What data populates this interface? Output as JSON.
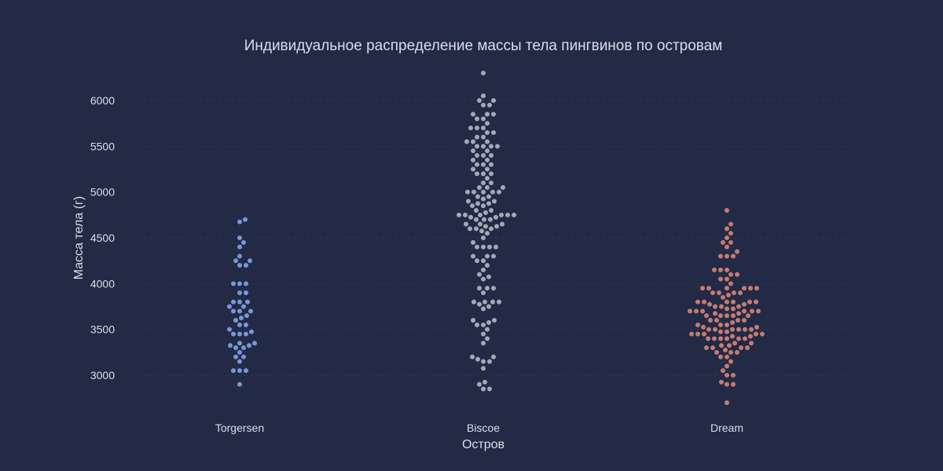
{
  "chart_data": {
    "type": "scatter",
    "subtype": "swarm",
    "title": "Индивидуальное распределение массы тела пингвинов по островам",
    "xlabel": "Остров",
    "ylabel": "Масса тела (г)",
    "categories": [
      "Torgersen",
      "Biscoe",
      "Dream"
    ],
    "ylim": [
      2500,
      6350
    ],
    "yticks": [
      3000,
      3500,
      4000,
      4500,
      5000,
      5500,
      6000
    ],
    "grid": true,
    "legend": "none",
    "colors": {
      "background": "#222a46",
      "grid": "#2e3656",
      "text": "#dcdde4",
      "Torgersen": "#7b96d6",
      "Biscoe": "#a6a8b4",
      "Dream": "#c47c72"
    },
    "series": [
      {
        "category": "Torgersen",
        "values": [
          2900,
          3050,
          3050,
          3050,
          3150,
          3200,
          3200,
          3250,
          3300,
          3300,
          3325,
          3325,
          3350,
          3350,
          3450,
          3450,
          3450,
          3475,
          3500,
          3550,
          3550,
          3600,
          3625,
          3650,
          3700,
          3700,
          3700,
          3750,
          3750,
          3800,
          3800,
          3800,
          3900,
          3900,
          4000,
          4000,
          4000,
          4200,
          4200,
          4250,
          4250,
          4300,
          4400,
          4450,
          4500,
          4675,
          4700
        ]
      },
      {
        "category": "Biscoe",
        "values": [
          2850,
          2850,
          2900,
          2925,
          3075,
          3150,
          3150,
          3175,
          3200,
          3200,
          3350,
          3400,
          3450,
          3500,
          3550,
          3550,
          3575,
          3600,
          3600,
          3725,
          3750,
          3775,
          3800,
          3800,
          3800,
          3800,
          3900,
          3950,
          3950,
          3950,
          4050,
          4075,
          4100,
          4150,
          4200,
          4250,
          4250,
          4300,
          4300,
          4300,
          4400,
          4400,
          4400,
          4400,
          4450,
          4500,
          4550,
          4575,
          4600,
          4600,
          4600,
          4625,
          4625,
          4650,
          4650,
          4650,
          4700,
          4700,
          4700,
          4725,
          4725,
          4750,
          4750,
          4750,
          4750,
          4750,
          4750,
          4775,
          4800,
          4800,
          4850,
          4850,
          4875,
          4875,
          4900,
          4900,
          4925,
          4950,
          4950,
          5000,
          5000,
          5000,
          5000,
          5000,
          5050,
          5050,
          5050,
          5100,
          5100,
          5150,
          5200,
          5200,
          5200,
          5250,
          5250,
          5300,
          5300,
          5300,
          5350,
          5350,
          5400,
          5400,
          5400,
          5450,
          5450,
          5500,
          5500,
          5500,
          5500,
          5550,
          5550,
          5550,
          5600,
          5600,
          5650,
          5650,
          5700,
          5700,
          5700,
          5750,
          5800,
          5800,
          5850,
          5850,
          5850,
          5950,
          5950,
          6000,
          6000,
          6050,
          6300
        ]
      },
      {
        "category": "Dream",
        "values": [
          2700,
          2900,
          2900,
          2925,
          3000,
          3000,
          3050,
          3100,
          3150,
          3200,
          3200,
          3250,
          3250,
          3250,
          3275,
          3300,
          3300,
          3300,
          3300,
          3325,
          3325,
          3350,
          3350,
          3400,
          3400,
          3400,
          3400,
          3400,
          3400,
          3425,
          3425,
          3450,
          3450,
          3450,
          3450,
          3450,
          3475,
          3475,
          3500,
          3500,
          3500,
          3500,
          3500,
          3500,
          3525,
          3525,
          3550,
          3550,
          3550,
          3575,
          3600,
          3600,
          3600,
          3600,
          3650,
          3650,
          3650,
          3650,
          3650,
          3675,
          3675,
          3700,
          3700,
          3700,
          3700,
          3700,
          3700,
          3725,
          3725,
          3750,
          3750,
          3750,
          3775,
          3775,
          3800,
          3800,
          3800,
          3800,
          3800,
          3800,
          3850,
          3875,
          3900,
          3900,
          3900,
          3900,
          3950,
          3950,
          3950,
          3950,
          3950,
          3950,
          4000,
          4050,
          4050,
          4100,
          4100,
          4150,
          4150,
          4150,
          4300,
          4300,
          4300,
          4350,
          4400,
          4450,
          4450,
          4500,
          4550,
          4600,
          4650,
          4800
        ]
      }
    ]
  }
}
